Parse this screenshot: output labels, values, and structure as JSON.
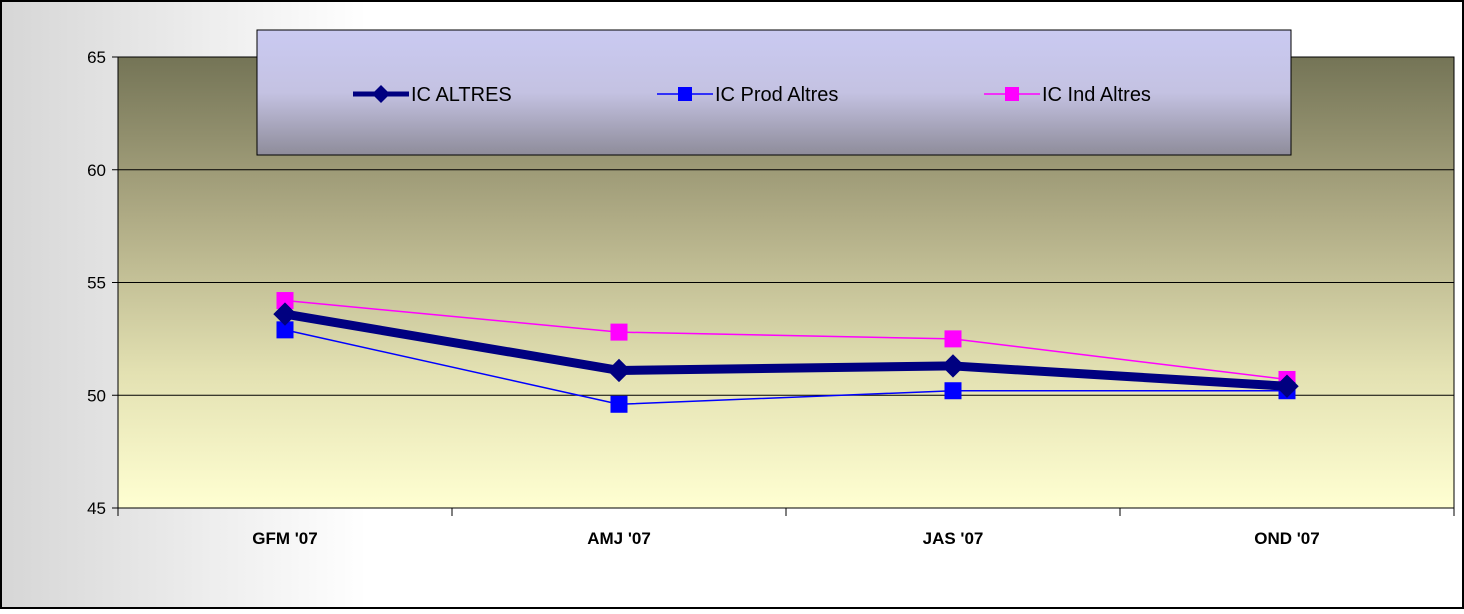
{
  "chart_data": {
    "type": "line",
    "title": "",
    "xlabel": "",
    "ylabel": "",
    "categories": [
      "GFM '07",
      "AMJ '07",
      "JAS '07",
      "OND '07"
    ],
    "ylim": [
      45,
      65
    ],
    "yticks": [
      "45",
      "50",
      "55",
      "60",
      "65"
    ],
    "grid": true,
    "legend_position": "top",
    "series": [
      {
        "name": "IC ALTRES",
        "values": [
          53.6,
          51.1,
          51.3,
          50.4
        ],
        "color": "#000080",
        "marker": "diamond"
      },
      {
        "name": "IC Prod Altres",
        "values": [
          52.9,
          49.6,
          50.2,
          50.2
        ],
        "color": "#0000FF",
        "marker": "square"
      },
      {
        "name": "IC Ind Altres",
        "values": [
          54.2,
          52.8,
          52.5,
          50.7
        ],
        "color": "#FF00FF",
        "marker": "square"
      }
    ]
  }
}
